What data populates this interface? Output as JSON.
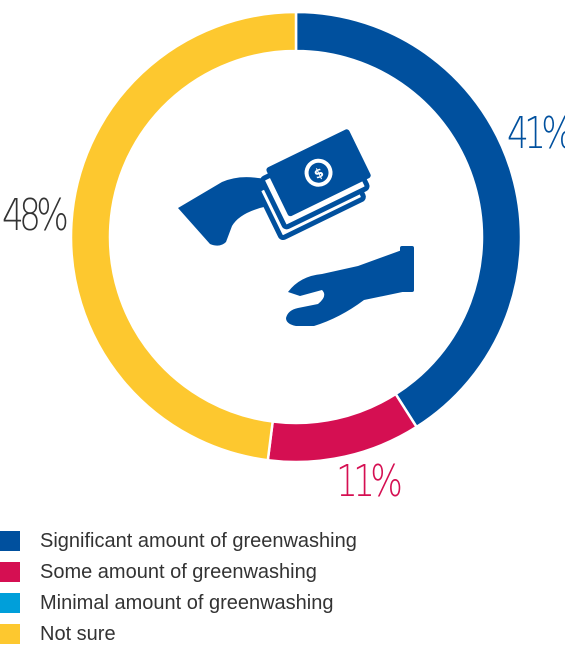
{
  "chart_data": {
    "type": "pie",
    "donut": true,
    "categories": [
      "Significant amount of greenwashing",
      "Some amount of greenwashing",
      "Minimal amount of greenwashing",
      "Not sure"
    ],
    "values": [
      41,
      11,
      0,
      48
    ],
    "colors": [
      "#00509e",
      "#d50f52",
      "#009fda",
      "#fdc82f"
    ],
    "labels": [
      "41%",
      "11%",
      "",
      "48%"
    ],
    "legend_position": "bottom-left",
    "center_icon": "hand-giving-money-icon"
  }
}
